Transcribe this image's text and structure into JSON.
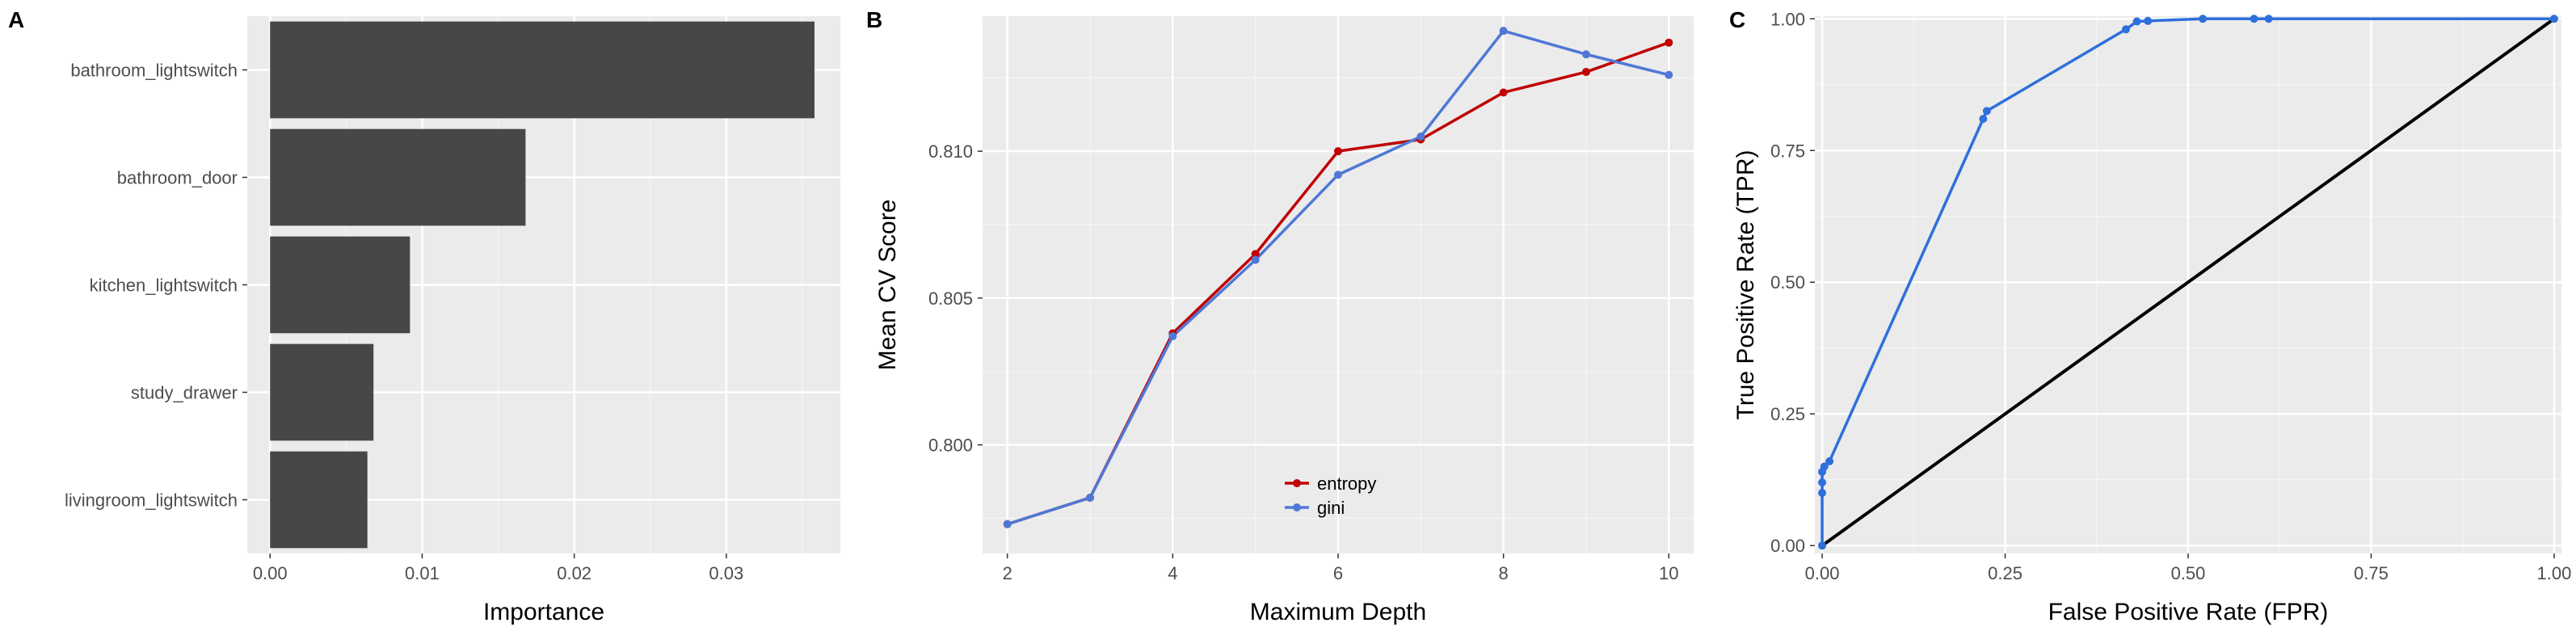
{
  "chart_data": [
    {
      "panel": "A",
      "type": "bar",
      "orientation": "horizontal",
      "categories": [
        "bathroom_lightswitch",
        "bathroom_door",
        "kitchen_lightswitch",
        "study_drawer",
        "livingroom_lightswitch"
      ],
      "values": [
        0.0358,
        0.0168,
        0.0092,
        0.0068,
        0.0064
      ],
      "bar_color": "#474747",
      "xlabel": "Importance",
      "ylabel": "",
      "xlim": [
        -0.0015,
        0.0375
      ],
      "xticks": [
        0.0,
        0.01,
        0.02,
        0.03
      ],
      "xtick_labels": [
        "0.00",
        "0.01",
        "0.02",
        "0.03"
      ],
      "grid": true
    },
    {
      "panel": "B",
      "type": "line",
      "x": [
        2,
        3,
        4,
        5,
        6,
        7,
        8,
        9,
        10
      ],
      "series": [
        {
          "name": "entropy",
          "color": "#c00000",
          "values": [
            0.7973,
            0.7982,
            0.8038,
            0.8065,
            0.81,
            0.8104,
            0.812,
            0.8127,
            0.8137
          ]
        },
        {
          "name": "gini",
          "color": "#4f78d6",
          "values": [
            0.7973,
            0.7982,
            0.8037,
            0.8063,
            0.8092,
            0.8105,
            0.8141,
            0.8133,
            0.8126
          ]
        }
      ],
      "xlabel": "Maximum Depth",
      "ylabel": "Mean CV Score",
      "xlim": [
        1.7,
        10.3
      ],
      "ylim": [
        0.7963,
        0.8146
      ],
      "xticks": [
        2,
        4,
        6,
        8,
        10
      ],
      "xtick_labels": [
        "2",
        "4",
        "6",
        "8",
        "10"
      ],
      "yticks": [
        0.8,
        0.805,
        0.81
      ],
      "ytick_labels": [
        "0.800",
        "0.805",
        "0.810"
      ],
      "legend": "bottom-center",
      "grid": true
    },
    {
      "panel": "C",
      "type": "line",
      "series": [
        {
          "name": "ROC",
          "color": "#2e6fdc",
          "points": [
            [
              0.0,
              0.0
            ],
            [
              0.0,
              0.1
            ],
            [
              0.0,
              0.12
            ],
            [
              0.0,
              0.14
            ],
            [
              0.003,
              0.15
            ],
            [
              0.01,
              0.16
            ],
            [
              0.22,
              0.81
            ],
            [
              0.225,
              0.825
            ],
            [
              0.415,
              0.98
            ],
            [
              0.43,
              0.995
            ],
            [
              0.445,
              0.996
            ],
            [
              0.52,
              1.0
            ],
            [
              0.59,
              1.0
            ],
            [
              0.61,
              1.0
            ],
            [
              1.0,
              1.0
            ]
          ]
        },
        {
          "name": "reference",
          "color": "#000000",
          "points": [
            [
              0.0,
              0.0
            ],
            [
              1.0,
              1.0
            ]
          ]
        }
      ],
      "xlabel": "False Positive Rate (FPR)",
      "ylabel": "True Positive Rate (TPR)",
      "xlim": [
        -0.01,
        1.01
      ],
      "ylim": [
        -0.015,
        1.005
      ],
      "xticks": [
        0.0,
        0.25,
        0.5,
        0.75,
        1.0
      ],
      "xtick_labels": [
        "0.00",
        "0.25",
        "0.50",
        "0.75",
        "1.00"
      ],
      "yticks": [
        0.0,
        0.25,
        0.5,
        0.75,
        1.0
      ],
      "ytick_labels": [
        "0.00",
        "0.25",
        "0.50",
        "0.75",
        "1.00"
      ],
      "grid": true
    }
  ]
}
